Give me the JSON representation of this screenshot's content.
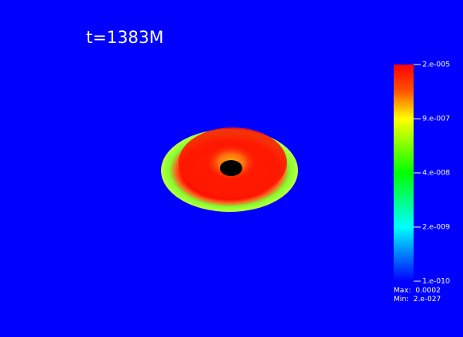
{
  "title": "t=1383M",
  "colorbar": {
    "labels": [
      "2.e-005",
      "9.e-007",
      "4.e-008",
      "2.e-009",
      "1.e-010"
    ]
  },
  "stats": {
    "max": "Max:  0.0002",
    "min": "Min:  2.e-027"
  }
}
